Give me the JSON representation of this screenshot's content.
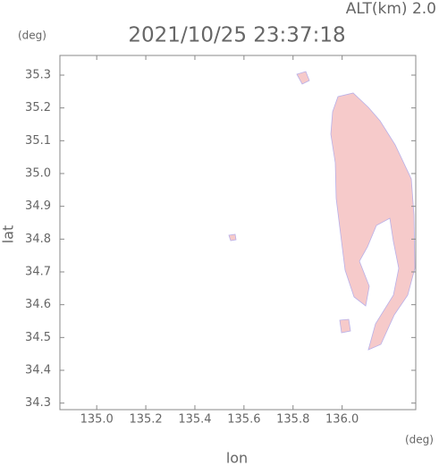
{
  "chart_data": {
    "type": "map",
    "title": "2021/10/25 23:37:18",
    "subtitle": "ALT(km) 2.0",
    "x_label": "lon",
    "y_label": "lat",
    "x_unit": "(deg)",
    "y_unit": "(deg)",
    "xlim": [
      134.85,
      136.3
    ],
    "ylim": [
      34.28,
      35.36
    ],
    "xticks": [
      {
        "value": 135.0,
        "label": "135.0"
      },
      135.2,
      135.4,
      135.6,
      135.8,
      {
        "value": 136.0,
        "label": "136.0"
      }
    ],
    "yticks": [
      34.3,
      34.4,
      34.5,
      34.6,
      34.7,
      34.8,
      34.9,
      {
        "value": 35.0,
        "label": "35.0"
      },
      35.1,
      35.2,
      35.3
    ]
  }
}
